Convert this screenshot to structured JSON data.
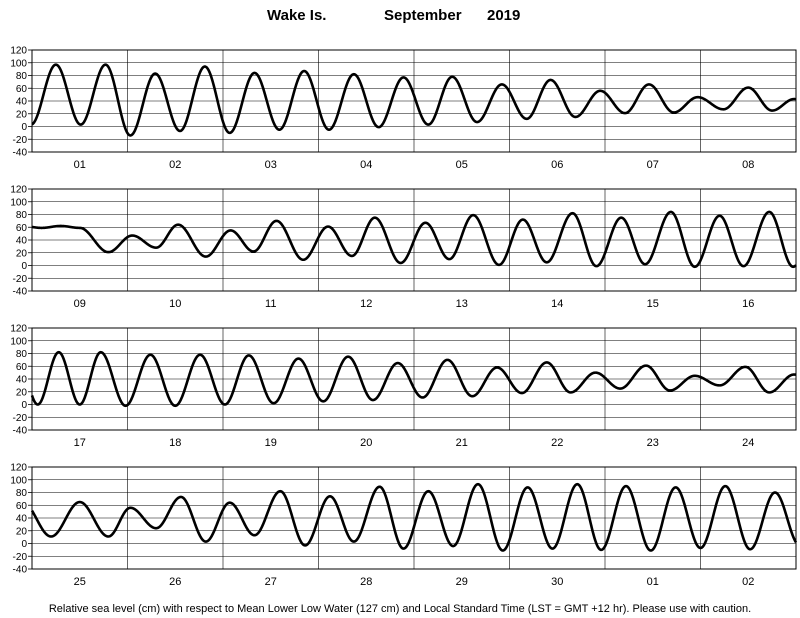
{
  "title": {
    "station": "Wake Is.",
    "month": "September",
    "year": "2019"
  },
  "footer": "Relative sea level (cm) with respect to Mean Lower Low Water (127 cm) and Local Standard Time (LST = GMT +12 hr). Please use with caution.",
  "chart_data": {
    "type": "line",
    "units": "cm",
    "ylim": [
      -40,
      120
    ],
    "yticks": [
      -40,
      -20,
      0,
      20,
      40,
      60,
      80,
      100,
      120
    ],
    "grid": "horizontal lines every 20 cm; vertical line at each day boundary",
    "panels": [
      {
        "days": [
          "01",
          "02",
          "03",
          "04",
          "05",
          "06",
          "07",
          "08"
        ],
        "highs": [
          {
            "t": 0.77,
            "v": 97
          },
          {
            "t": 1.29,
            "v": 83
          },
          {
            "t": 1.81,
            "v": 94
          },
          {
            "t": 2.33,
            "v": 84
          },
          {
            "t": 2.85,
            "v": 87
          },
          {
            "t": 3.37,
            "v": 82
          },
          {
            "t": 3.89,
            "v": 77
          },
          {
            "t": 4.4,
            "v": 78
          },
          {
            "t": 4.92,
            "v": 66
          },
          {
            "t": 5.43,
            "v": 73
          },
          {
            "t": 5.95,
            "v": 56
          },
          {
            "t": 6.46,
            "v": 66
          },
          {
            "t": 6.97,
            "v": 46
          },
          {
            "t": 7.5,
            "v": 61
          },
          {
            "t": 7.98,
            "v": 43
          }
        ],
        "lows": [
          {
            "t": 0.51,
            "v": 3
          },
          {
            "t": 1.03,
            "v": -14
          },
          {
            "t": 1.55,
            "v": -7
          },
          {
            "t": 2.07,
            "v": -10
          },
          {
            "t": 2.59,
            "v": -5
          },
          {
            "t": 3.11,
            "v": -5
          },
          {
            "t": 3.63,
            "v": -1
          },
          {
            "t": 4.15,
            "v": 3
          },
          {
            "t": 4.66,
            "v": 7
          },
          {
            "t": 5.18,
            "v": 12
          },
          {
            "t": 5.69,
            "v": 15
          },
          {
            "t": 6.21,
            "v": 21
          },
          {
            "t": 6.72,
            "v": 22
          },
          {
            "t": 7.24,
            "v": 27
          },
          {
            "t": 7.75,
            "v": 25
          },
          {
            "t": 8.24,
            "v": 32
          },
          {
            "t": 8.7,
            "v": 46
          }
        ]
      },
      {
        "days": [
          "09",
          "10",
          "11",
          "12",
          "13",
          "14",
          "15",
          "16"
        ],
        "highs": [
          {
            "t": 0.5,
            "v": 59
          },
          {
            "t": 1.05,
            "v": 47
          },
          {
            "t": 1.53,
            "v": 64
          },
          {
            "t": 2.08,
            "v": 55
          },
          {
            "t": 2.56,
            "v": 70
          },
          {
            "t": 3.1,
            "v": 61
          },
          {
            "t": 3.59,
            "v": 75
          },
          {
            "t": 4.12,
            "v": 67
          },
          {
            "t": 4.62,
            "v": 79
          },
          {
            "t": 5.14,
            "v": 72
          },
          {
            "t": 5.66,
            "v": 82
          },
          {
            "t": 6.17,
            "v": 75
          },
          {
            "t": 6.69,
            "v": 84
          },
          {
            "t": 7.2,
            "v": 78
          },
          {
            "t": 7.72,
            "v": 84
          },
          {
            "t": 8.23,
            "v": 79
          }
        ],
        "lows": [
          {
            "t": 0.3,
            "v": 62
          },
          {
            "t": 0.8,
            "v": 21
          },
          {
            "t": 1.3,
            "v": 28
          },
          {
            "t": 1.82,
            "v": 14
          },
          {
            "t": 2.32,
            "v": 22
          },
          {
            "t": 2.84,
            "v": 9
          },
          {
            "t": 3.35,
            "v": 15
          },
          {
            "t": 3.86,
            "v": 4
          },
          {
            "t": 4.37,
            "v": 10
          },
          {
            "t": 4.89,
            "v": 1
          },
          {
            "t": 5.39,
            "v": 5
          },
          {
            "t": 5.91,
            "v": -1
          },
          {
            "t": 6.42,
            "v": 2
          },
          {
            "t": 6.94,
            "v": -2
          },
          {
            "t": 7.45,
            "v": -1
          },
          {
            "t": 7.97,
            "v": -2
          },
          {
            "t": 8.48,
            "v": -3
          },
          {
            "t": 8.7,
            "v": 15
          }
        ]
      },
      {
        "days": [
          "17",
          "18",
          "19",
          "20",
          "21",
          "22",
          "23",
          "24"
        ],
        "highs": [
          {
            "t": 0.72,
            "v": 82
          },
          {
            "t": 1.24,
            "v": 78
          },
          {
            "t": 1.76,
            "v": 78
          },
          {
            "t": 2.27,
            "v": 77
          },
          {
            "t": 2.79,
            "v": 72
          },
          {
            "t": 3.31,
            "v": 75
          },
          {
            "t": 3.83,
            "v": 65
          },
          {
            "t": 4.35,
            "v": 70
          },
          {
            "t": 4.87,
            "v": 58
          },
          {
            "t": 5.39,
            "v": 66
          },
          {
            "t": 5.9,
            "v": 50
          },
          {
            "t": 6.43,
            "v": 61
          },
          {
            "t": 6.94,
            "v": 45
          },
          {
            "t": 7.47,
            "v": 59
          },
          {
            "t": 7.98,
            "v": 47
          },
          {
            "t": 8.5,
            "v": 63
          }
        ],
        "lows": [
          {
            "t": 0.5,
            "v": 0
          },
          {
            "t": 0.98,
            "v": -2
          },
          {
            "t": 1.5,
            "v": -2
          },
          {
            "t": 2.02,
            "v": 0
          },
          {
            "t": 2.53,
            "v": 2
          },
          {
            "t": 3.05,
            "v": 5
          },
          {
            "t": 3.57,
            "v": 7
          },
          {
            "t": 4.09,
            "v": 11
          },
          {
            "t": 4.61,
            "v": 13
          },
          {
            "t": 5.13,
            "v": 18
          },
          {
            "t": 5.64,
            "v": 19
          },
          {
            "t": 6.16,
            "v": 25
          },
          {
            "t": 6.68,
            "v": 22
          },
          {
            "t": 7.2,
            "v": 30
          },
          {
            "t": 7.72,
            "v": 19
          },
          {
            "t": 8.24,
            "v": 30
          },
          {
            "t": 8.7,
            "v": 50
          }
        ]
      },
      {
        "days": [
          "25",
          "26",
          "27",
          "28",
          "29",
          "30",
          "01",
          "02"
        ],
        "highs": [
          {
            "t": 0.5,
            "v": 65
          },
          {
            "t": 1.03,
            "v": 56
          },
          {
            "t": 1.56,
            "v": 73
          },
          {
            "t": 2.07,
            "v": 64
          },
          {
            "t": 2.6,
            "v": 82
          },
          {
            "t": 3.12,
            "v": 74
          },
          {
            "t": 3.64,
            "v": 89
          },
          {
            "t": 4.15,
            "v": 82
          },
          {
            "t": 4.67,
            "v": 93
          },
          {
            "t": 5.19,
            "v": 88
          },
          {
            "t": 5.71,
            "v": 93
          },
          {
            "t": 6.22,
            "v": 90
          },
          {
            "t": 6.74,
            "v": 88
          },
          {
            "t": 7.26,
            "v": 90
          },
          {
            "t": 7.78,
            "v": 80
          },
          {
            "t": 8.3,
            "v": 87
          }
        ],
        "lows": [
          {
            "t": 0.8,
            "v": 11
          },
          {
            "t": 1.3,
            "v": 24
          },
          {
            "t": 1.82,
            "v": 3
          },
          {
            "t": 2.33,
            "v": 13
          },
          {
            "t": 2.86,
            "v": -3
          },
          {
            "t": 3.37,
            "v": 3
          },
          {
            "t": 3.89,
            "v": -8
          },
          {
            "t": 4.41,
            "v": -4
          },
          {
            "t": 4.93,
            "v": -11
          },
          {
            "t": 5.45,
            "v": -8
          },
          {
            "t": 5.96,
            "v": -10
          },
          {
            "t": 6.48,
            "v": -11
          },
          {
            "t": 7.0,
            "v": -7
          },
          {
            "t": 7.52,
            "v": -9
          },
          {
            "t": 8.04,
            "v": -3
          },
          {
            "t": 8.5,
            "v": -2
          },
          {
            "t": 8.7,
            "v": 25
          }
        ]
      }
    ]
  }
}
